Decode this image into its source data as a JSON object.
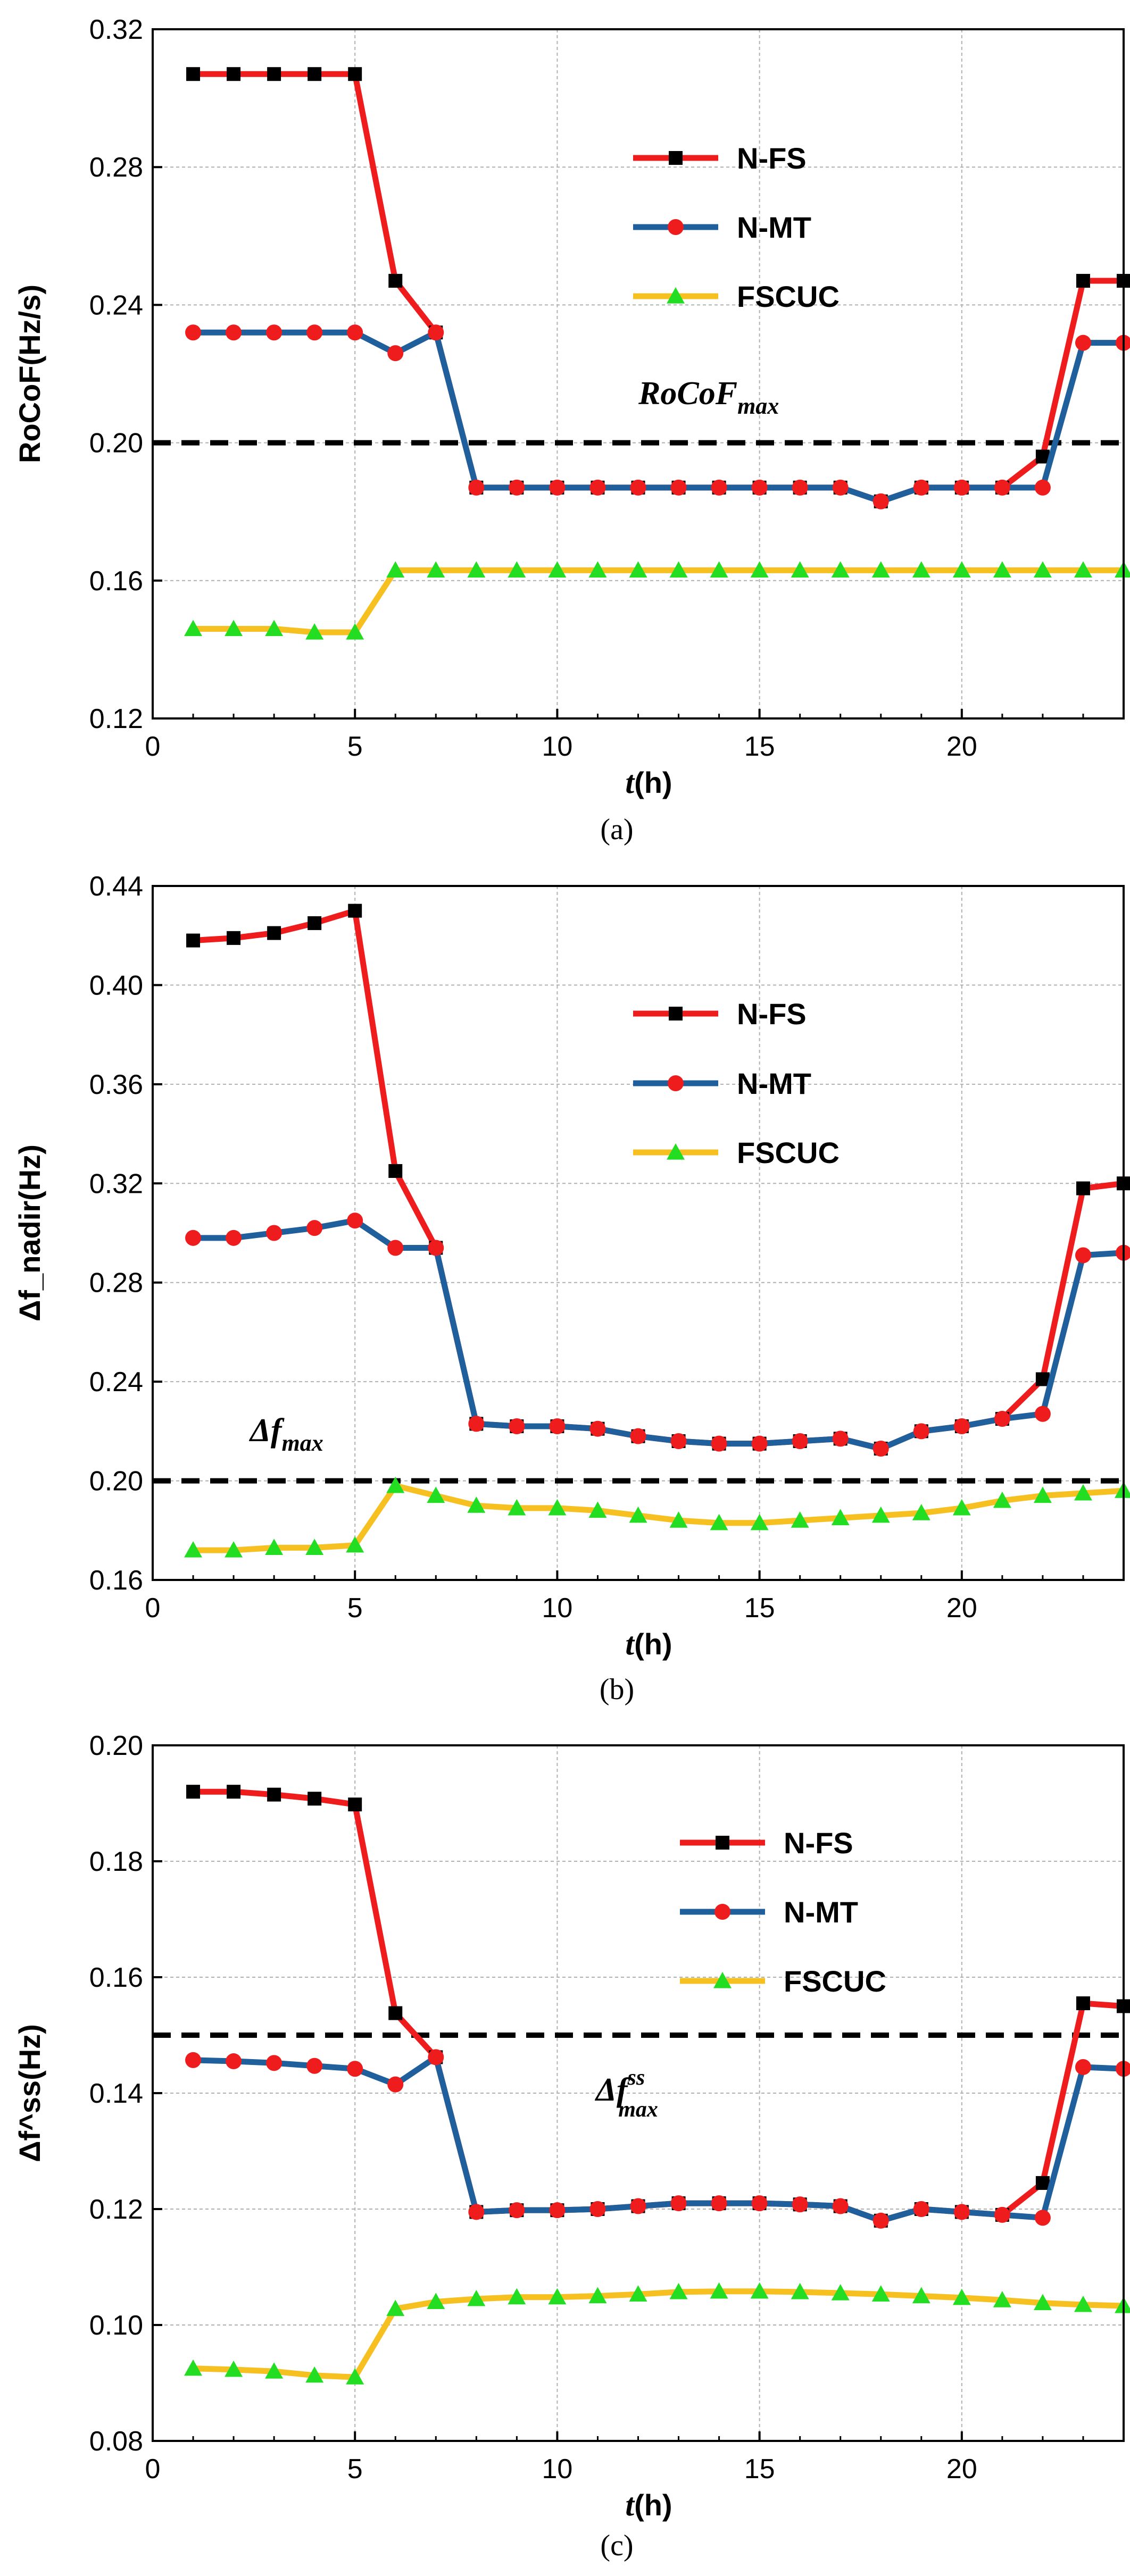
{
  "colors": {
    "nfs_line": "#ee1c1c",
    "nfs_marker": "#000000",
    "nmt_line": "#1f5f9c",
    "nmt_marker": "#ee1c1c",
    "fscuc_line": "#f5c020",
    "fscuc_marker": "#22dd22",
    "grid": "#b0b0b0",
    "threshold": "#000000"
  },
  "chart_data": [
    {
      "type": "line",
      "panel": "a",
      "caption": "(a)",
      "ylabel": "RoCoF(Hz/s)",
      "xlabel": {
        "var": "t",
        "unit": "(h)"
      },
      "xlim": [
        0,
        24
      ],
      "ylim": [
        0.12,
        0.32
      ],
      "xticks": [
        "0",
        "5",
        "10",
        "15",
        "20"
      ],
      "yticks": [
        "0.12",
        "0.16",
        "0.20",
        "0.24",
        "0.28",
        "0.32"
      ],
      "threshold": {
        "value": 0.2,
        "label": "RoCoF",
        "sub": "max",
        "sup": ""
      },
      "legend": [
        "N-FS",
        "N-MT",
        "FSCUC"
      ],
      "x": [
        1,
        2,
        3,
        4,
        5,
        6,
        7,
        8,
        9,
        10,
        11,
        12,
        13,
        14,
        15,
        16,
        17,
        18,
        19,
        20,
        21,
        22,
        23,
        24
      ],
      "series": [
        {
          "name": "N-FS",
          "values": [
            0.307,
            0.307,
            0.307,
            0.307,
            0.307,
            0.247,
            0.232,
            0.187,
            0.187,
            0.187,
            0.187,
            0.187,
            0.187,
            0.187,
            0.187,
            0.187,
            0.187,
            0.183,
            0.187,
            0.187,
            0.187,
            0.196,
            0.247,
            0.247
          ]
        },
        {
          "name": "N-MT",
          "values": [
            0.232,
            0.232,
            0.232,
            0.232,
            0.232,
            0.226,
            0.232,
            0.187,
            0.187,
            0.187,
            0.187,
            0.187,
            0.187,
            0.187,
            0.187,
            0.187,
            0.187,
            0.183,
            0.187,
            0.187,
            0.187,
            0.187,
            0.229,
            0.229
          ]
        },
        {
          "name": "FSCUC",
          "values": [
            0.146,
            0.146,
            0.146,
            0.145,
            0.145,
            0.163,
            0.163,
            0.163,
            0.163,
            0.163,
            0.163,
            0.163,
            0.163,
            0.163,
            0.163,
            0.163,
            0.163,
            0.163,
            0.163,
            0.163,
            0.163,
            0.163,
            0.163,
            0.163
          ]
        }
      ]
    },
    {
      "type": "line",
      "panel": "b",
      "caption": "(b)",
      "ylabel": "Δf_nadir(Hz)",
      "xlabel": {
        "var": "t",
        "unit": "(h)"
      },
      "xlim": [
        0,
        24
      ],
      "ylim": [
        0.16,
        0.44
      ],
      "xticks": [
        "0",
        "5",
        "10",
        "15",
        "20"
      ],
      "yticks": [
        "0.16",
        "0.20",
        "0.24",
        "0.28",
        "0.32",
        "0.36",
        "0.40",
        "0.44"
      ],
      "threshold": {
        "value": 0.2,
        "label": "Δf",
        "sub": "max",
        "sup": ""
      },
      "legend": [
        "N-FS",
        "N-MT",
        "FSCUC"
      ],
      "x": [
        1,
        2,
        3,
        4,
        5,
        6,
        7,
        8,
        9,
        10,
        11,
        12,
        13,
        14,
        15,
        16,
        17,
        18,
        19,
        20,
        21,
        22,
        23,
        24
      ],
      "series": [
        {
          "name": "N-FS",
          "values": [
            0.418,
            0.419,
            0.421,
            0.425,
            0.43,
            0.325,
            0.294,
            0.223,
            0.222,
            0.222,
            0.221,
            0.218,
            0.216,
            0.215,
            0.215,
            0.216,
            0.217,
            0.213,
            0.22,
            0.222,
            0.225,
            0.241,
            0.318,
            0.32
          ]
        },
        {
          "name": "N-MT",
          "values": [
            0.298,
            0.298,
            0.3,
            0.302,
            0.305,
            0.294,
            0.294,
            0.223,
            0.222,
            0.222,
            0.221,
            0.218,
            0.216,
            0.215,
            0.215,
            0.216,
            0.217,
            0.213,
            0.22,
            0.222,
            0.225,
            0.227,
            0.291,
            0.292
          ]
        },
        {
          "name": "FSCUC",
          "values": [
            0.172,
            0.172,
            0.173,
            0.173,
            0.174,
            0.198,
            0.194,
            0.19,
            0.189,
            0.189,
            0.188,
            0.186,
            0.184,
            0.183,
            0.183,
            0.184,
            0.185,
            0.186,
            0.187,
            0.189,
            0.192,
            0.194,
            0.195,
            0.196
          ]
        }
      ]
    },
    {
      "type": "line",
      "panel": "c",
      "caption": "(c)",
      "ylabel": "Δf^ss(Hz)",
      "xlabel": {
        "var": "t",
        "unit": "(h)"
      },
      "xlim": [
        0,
        24
      ],
      "ylim": [
        0.08,
        0.2
      ],
      "xticks": [
        "0",
        "5",
        "10",
        "15",
        "20"
      ],
      "yticks": [
        "0.08",
        "0.10",
        "0.12",
        "0.14",
        "0.16",
        "0.18",
        "0.20"
      ],
      "threshold": {
        "value": 0.15,
        "label": "Δf",
        "sub": "max",
        "sup": "ss"
      },
      "legend": [
        "N-FS",
        "N-MT",
        "FSCUC"
      ],
      "x": [
        1,
        2,
        3,
        4,
        5,
        6,
        7,
        8,
        9,
        10,
        11,
        12,
        13,
        14,
        15,
        16,
        17,
        18,
        19,
        20,
        21,
        22,
        23,
        24
      ],
      "series": [
        {
          "name": "N-FS",
          "values": [
            0.192,
            0.192,
            0.1915,
            0.1908,
            0.1898,
            0.1538,
            0.1462,
            0.1195,
            0.1198,
            0.1198,
            0.12,
            0.1205,
            0.121,
            0.121,
            0.121,
            0.1208,
            0.1205,
            0.118,
            0.12,
            0.1195,
            0.119,
            0.1245,
            0.1555,
            0.155
          ]
        },
        {
          "name": "N-MT",
          "values": [
            0.1457,
            0.1455,
            0.1452,
            0.1447,
            0.1442,
            0.1415,
            0.1462,
            0.1195,
            0.1198,
            0.1198,
            0.12,
            0.1205,
            0.121,
            0.121,
            0.121,
            0.1208,
            0.1205,
            0.118,
            0.12,
            0.1195,
            0.119,
            0.1185,
            0.1445,
            0.1442
          ]
        },
        {
          "name": "FSCUC",
          "values": [
            0.0925,
            0.0923,
            0.092,
            0.0913,
            0.091,
            0.1028,
            0.104,
            0.1045,
            0.1048,
            0.1048,
            0.105,
            0.1053,
            0.1057,
            0.1058,
            0.1058,
            0.1057,
            0.1055,
            0.1053,
            0.105,
            0.1047,
            0.1043,
            0.1038,
            0.1035,
            0.1033
          ]
        }
      ]
    }
  ]
}
